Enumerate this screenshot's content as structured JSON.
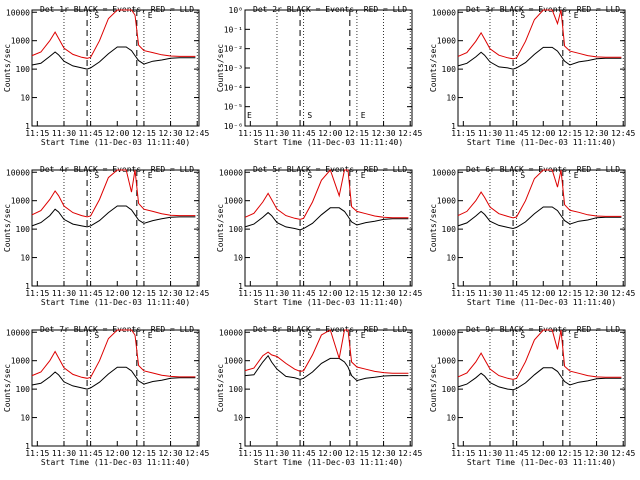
{
  "start_label": "Start Time (11-Dec-03 11:11:40)",
  "ylabel": "Counts/sec",
  "colors": {
    "events": "#000000",
    "lld": "#dd0000",
    "axis": "#000000"
  },
  "chart_data": [
    {
      "type": "line",
      "title": "Det 1r BLACK = Events, RED = LLD",
      "ylabel": "Counts/sec",
      "xlabel": "Start Time (11-Dec-03 11:11:40)",
      "x_ticks": [
        "11:15",
        "11:30",
        "11:45",
        "12:00",
        "12:15",
        "12:30",
        "12:45"
      ],
      "y_ticks": [
        "1",
        "10",
        "100",
        "1000",
        "10000"
      ],
      "ylim": [
        1,
        12000
      ],
      "yscale": "log",
      "markers": [
        "S",
        "E"
      ],
      "x": [
        "11:12",
        "11:17",
        "11:22",
        "11:25",
        "11:27",
        "11:30",
        "11:35",
        "11:40",
        "11:43",
        "11:45",
        "11:50",
        "11:55",
        "12:00",
        "12:05",
        "12:08",
        "12:10",
        "12:12",
        "12:15",
        "12:20",
        "12:25",
        "12:30",
        "12:35",
        "12:40",
        "12:44"
      ],
      "series": [
        {
          "name": "BLACK = Events",
          "values": [
            140,
            160,
            280,
            400,
            320,
            190,
            130,
            110,
            100,
            110,
            180,
            350,
            600,
            600,
            450,
            300,
            200,
            150,
            190,
            210,
            240,
            250,
            250,
            250
          ]
        },
        {
          "name": "RED = LLD",
          "values": [
            300,
            400,
            1000,
            2000,
            1200,
            550,
            330,
            260,
            240,
            260,
            1000,
            6000,
            12000,
            12000,
            12000,
            8000,
            700,
            450,
            380,
            320,
            290,
            280,
            280,
            280
          ]
        }
      ]
    },
    {
      "type": "line",
      "title": "Det 2r BLACK = Events, RED = LLD",
      "ylabel": "Counts/sec",
      "xlabel": "Start Time (11-Dec-03 11:11:40)",
      "x_ticks": [
        "11:15",
        "11:30",
        "11:45",
        "12:00",
        "12:15",
        "12:30",
        "12:45"
      ],
      "y_ticks": [
        "10⁻⁶",
        "10⁻⁵",
        "10⁻⁴",
        "10⁻³",
        "10⁻²",
        "10⁻¹",
        "10⁰"
      ],
      "ylim": [
        1e-06,
        1
      ],
      "yscale": "log",
      "markers": [
        "E",
        "S",
        "E"
      ],
      "x": [],
      "series": []
    },
    {
      "type": "line",
      "title": "Det 3r BLACK = Events, RED = LLD",
      "ylabel": "Counts/sec",
      "xlabel": "Start Time (11-Dec-03 11:11:40)",
      "x_ticks": [
        "11:15",
        "11:30",
        "11:45",
        "12:00",
        "12:15",
        "12:30",
        "12:45"
      ],
      "y_ticks": [
        "1",
        "10",
        "100",
        "1000",
        "10000"
      ],
      "ylim": [
        1,
        12000
      ],
      "yscale": "log",
      "markers": [
        "S",
        "E"
      ],
      "x": [
        "11:12",
        "11:17",
        "11:22",
        "11:25",
        "11:27",
        "11:30",
        "11:35",
        "11:40",
        "11:43",
        "11:45",
        "11:50",
        "11:55",
        "12:00",
        "12:05",
        "12:08",
        "12:10",
        "12:12",
        "12:15",
        "12:20",
        "12:25",
        "12:30",
        "12:35",
        "12:40",
        "12:44"
      ],
      "series": [
        {
          "name": "BLACK = Events",
          "values": [
            130,
            160,
            270,
            390,
            310,
            180,
            120,
            110,
            100,
            110,
            170,
            330,
            580,
            580,
            430,
            290,
            190,
            140,
            180,
            200,
            230,
            240,
            240,
            240
          ]
        },
        {
          "name": "RED = LLD",
          "values": [
            280,
            380,
            950,
            1900,
            1150,
            520,
            310,
            250,
            230,
            250,
            950,
            5500,
            12000,
            12000,
            4000,
            12000,
            650,
            430,
            360,
            300,
            270,
            260,
            260,
            260
          ]
        }
      ]
    },
    {
      "type": "line",
      "title": "Det 4r BLACK = Events, RED = LLD",
      "ylabel": "Counts/sec",
      "xlabel": "Start Time (11-Dec-03 11:11:40)",
      "x_ticks": [
        "11:15",
        "11:30",
        "11:45",
        "12:00",
        "12:15",
        "12:30",
        "12:45"
      ],
      "y_ticks": [
        "1",
        "10",
        "100",
        "1000",
        "10000"
      ],
      "ylim": [
        1,
        12000
      ],
      "yscale": "log",
      "markers": [
        "S",
        "E"
      ],
      "x": [
        "11:12",
        "11:17",
        "11:22",
        "11:25",
        "11:27",
        "11:30",
        "11:35",
        "11:40",
        "11:43",
        "11:45",
        "11:50",
        "11:55",
        "12:00",
        "12:05",
        "12:08",
        "12:10",
        "12:12",
        "12:15",
        "12:20",
        "12:25",
        "12:30",
        "12:35",
        "12:40",
        "12:44"
      ],
      "series": [
        {
          "name": "BLACK = Events",
          "values": [
            130,
            170,
            300,
            500,
            400,
            220,
            150,
            130,
            120,
            130,
            200,
            380,
            650,
            650,
            480,
            320,
            210,
            160,
            200,
            230,
            260,
            270,
            270,
            270
          ]
        },
        {
          "name": "RED = LLD",
          "values": [
            320,
            450,
            1100,
            2200,
            1500,
            650,
            380,
            300,
            270,
            290,
            1100,
            6500,
            12000,
            12000,
            2000,
            12000,
            800,
            500,
            420,
            350,
            310,
            300,
            300,
            300
          ]
        }
      ]
    },
    {
      "type": "line",
      "title": "Det 5r BLACK = Events, RED = LLD",
      "ylabel": "Counts/sec",
      "xlabel": "Start Time (11-Dec-03 11:11:40)",
      "x_ticks": [
        "11:15",
        "11:30",
        "11:45",
        "12:00",
        "12:15",
        "12:30",
        "12:45"
      ],
      "y_ticks": [
        "1",
        "10",
        "100",
        "1000",
        "10000"
      ],
      "ylim": [
        1,
        12000
      ],
      "yscale": "log",
      "markers": [
        "S",
        "E"
      ],
      "x": [
        "11:12",
        "11:17",
        "11:22",
        "11:25",
        "11:27",
        "11:30",
        "11:35",
        "11:40",
        "11:43",
        "11:45",
        "11:50",
        "11:55",
        "12:00",
        "12:05",
        "12:08",
        "12:10",
        "12:12",
        "12:15",
        "12:20",
        "12:25",
        "12:30",
        "12:35",
        "12:40",
        "12:44"
      ],
      "series": [
        {
          "name": "BLACK = Events",
          "values": [
            120,
            150,
            260,
            380,
            300,
            170,
            120,
            105,
            95,
            105,
            160,
            320,
            560,
            560,
            420,
            280,
            180,
            140,
            170,
            190,
            220,
            230,
            230,
            230
          ]
        },
        {
          "name": "RED = LLD",
          "values": [
            260,
            360,
            900,
            1800,
            1100,
            500,
            300,
            240,
            220,
            240,
            900,
            5200,
            12000,
            1500,
            12000,
            12000,
            620,
            420,
            350,
            290,
            260,
            250,
            250,
            250
          ]
        }
      ]
    },
    {
      "type": "line",
      "title": "Det 6r BLACK = Events, RED = LLD",
      "ylabel": "Counts/sec",
      "xlabel": "Start Time (11-Dec-03 11:11:40)",
      "x_ticks": [
        "11:15",
        "11:30",
        "11:45",
        "12:00",
        "12:15",
        "12:30",
        "12:45"
      ],
      "y_ticks": [
        "1",
        "10",
        "100",
        "1000",
        "10000"
      ],
      "ylim": [
        1,
        12000
      ],
      "yscale": "log",
      "markers": [
        "S",
        "E"
      ],
      "x": [
        "11:12",
        "11:17",
        "11:22",
        "11:25",
        "11:27",
        "11:30",
        "11:35",
        "11:40",
        "11:43",
        "11:45",
        "11:50",
        "11:55",
        "12:00",
        "12:05",
        "12:08",
        "12:10",
        "12:12",
        "12:15",
        "12:20",
        "12:25",
        "12:30",
        "12:35",
        "12:40",
        "12:44"
      ],
      "series": [
        {
          "name": "BLACK = Events",
          "values": [
            130,
            165,
            290,
            420,
            330,
            190,
            135,
            115,
            105,
            115,
            180,
            350,
            600,
            600,
            450,
            300,
            200,
            150,
            190,
            210,
            250,
            260,
            260,
            260
          ]
        },
        {
          "name": "RED = LLD",
          "values": [
            300,
            420,
            1000,
            2000,
            1300,
            600,
            350,
            280,
            250,
            270,
            1000,
            6000,
            12000,
            12000,
            3000,
            12000,
            720,
            460,
            390,
            320,
            290,
            280,
            280,
            280
          ]
        }
      ]
    },
    {
      "type": "line",
      "title": "Det 7r BLACK = Events, RED = LLD",
      "ylabel": "Counts/sec",
      "xlabel": "Start Time (11-Dec-03 11:11:40)",
      "x_ticks": [
        "11:15",
        "11:30",
        "11:45",
        "12:00",
        "12:15",
        "12:30",
        "12:45"
      ],
      "y_ticks": [
        "1",
        "10",
        "100",
        "1000",
        "10000"
      ],
      "ylim": [
        1,
        12000
      ],
      "yscale": "log",
      "markers": [
        "S",
        "E"
      ],
      "x": [
        "11:12",
        "11:17",
        "11:22",
        "11:25",
        "11:27",
        "11:30",
        "11:35",
        "11:40",
        "11:43",
        "11:45",
        "11:50",
        "11:55",
        "12:00",
        "12:05",
        "12:08",
        "12:10",
        "12:12",
        "12:15",
        "12:20",
        "12:25",
        "12:30",
        "12:35",
        "12:40",
        "12:44"
      ],
      "series": [
        {
          "name": "BLACK = Events",
          "values": [
            140,
            160,
            270,
            400,
            320,
            180,
            130,
            110,
            100,
            110,
            175,
            340,
            590,
            590,
            440,
            295,
            195,
            150,
            185,
            205,
            240,
            250,
            250,
            250
          ]
        },
        {
          "name": "RED = LLD",
          "values": [
            300,
            400,
            1000,
            2100,
            1250,
            560,
            330,
            260,
            240,
            260,
            1000,
            6000,
            12000,
            12000,
            12000,
            8000,
            680,
            440,
            370,
            310,
            280,
            270,
            270,
            270
          ]
        }
      ]
    },
    {
      "type": "line",
      "title": "Det 8r BLACK = Events, RED = LLD",
      "ylabel": "Counts/sec",
      "xlabel": "Start Time (11-Dec-03 11:11:40)",
      "x_ticks": [
        "11:15",
        "11:30",
        "11:45",
        "12:00",
        "12:15",
        "12:30",
        "12:45"
      ],
      "y_ticks": [
        "1",
        "10",
        "100",
        "1000",
        "10000"
      ],
      "ylim": [
        1,
        12000
      ],
      "yscale": "log",
      "markers": [
        "S",
        "E"
      ],
      "x": [
        "11:12",
        "11:17",
        "11:22",
        "11:25",
        "11:27",
        "11:30",
        "11:35",
        "11:40",
        "11:43",
        "11:45",
        "11:50",
        "11:55",
        "12:00",
        "12:05",
        "12:08",
        "12:10",
        "12:12",
        "12:15",
        "12:20",
        "12:25",
        "12:30",
        "12:35",
        "12:40",
        "12:44"
      ],
      "series": [
        {
          "name": "BLACK = Events",
          "values": [
            300,
            320,
            900,
            1500,
            900,
            500,
            280,
            250,
            220,
            240,
            400,
            800,
            1200,
            1200,
            900,
            600,
            300,
            200,
            240,
            260,
            290,
            300,
            300,
            300
          ]
        },
        {
          "name": "RED = LLD",
          "values": [
            450,
            550,
            1500,
            2000,
            1600,
            1400,
            800,
            500,
            420,
            440,
            1600,
            8000,
            12000,
            1200,
            12000,
            12000,
            900,
            600,
            500,
            420,
            380,
            360,
            360,
            360
          ]
        }
      ]
    },
    {
      "type": "line",
      "title": "Det 9r BLACK = Events, RED = LLD",
      "ylabel": "Counts/sec",
      "xlabel": "Start Time (11-Dec-03 11:11:40)",
      "x_ticks": [
        "11:15",
        "11:30",
        "11:45",
        "12:00",
        "12:15",
        "12:30",
        "12:45"
      ],
      "y_ticks": [
        "1",
        "10",
        "100",
        "1000",
        "10000"
      ],
      "ylim": [
        1,
        12000
      ],
      "yscale": "log",
      "markers": [
        "S",
        "E"
      ],
      "x": [
        "11:12",
        "11:17",
        "11:22",
        "11:25",
        "11:27",
        "11:30",
        "11:35",
        "11:40",
        "11:43",
        "11:45",
        "11:50",
        "11:55",
        "12:00",
        "12:05",
        "12:08",
        "12:10",
        "12:12",
        "12:15",
        "12:20",
        "12:25",
        "12:30",
        "12:35",
        "12:40",
        "12:44"
      ],
      "series": [
        {
          "name": "BLACK = Events",
          "values": [
            120,
            150,
            250,
            360,
            290,
            170,
            120,
            100,
            95,
            105,
            165,
            320,
            560,
            560,
            420,
            280,
            185,
            140,
            175,
            195,
            230,
            240,
            240,
            240
          ]
        },
        {
          "name": "RED = LLD",
          "values": [
            270,
            370,
            900,
            1850,
            1100,
            510,
            300,
            240,
            220,
            240,
            920,
            5400,
            12000,
            12000,
            2500,
            12000,
            640,
            430,
            360,
            300,
            270,
            260,
            260,
            260
          ]
        }
      ]
    }
  ]
}
